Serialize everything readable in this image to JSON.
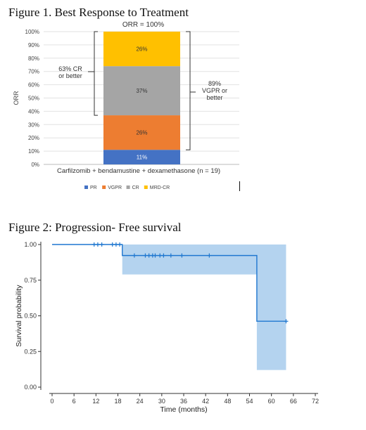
{
  "figure1_title": "Figure 1. Best Response to Treatment",
  "figure2_title": "Figure 2: Progression- Free survival",
  "chart_data": [
    {
      "type": "bar",
      "title": "ORR = 100%",
      "ylabel": "ORR",
      "xlabel": "Carfilzomib + bendamustine + dexamethasone (n = 19)",
      "ylim": [
        0,
        100
      ],
      "ytick_labels": [
        "0%",
        "10%",
        "20%",
        "30%",
        "40%",
        "50%",
        "60%",
        "70%",
        "80%",
        "90%",
        "100%"
      ],
      "stacked": true,
      "categories": [
        "Carfilzomib + bendamustine + dexamethasone (n = 19)"
      ],
      "series": [
        {
          "name": "PR",
          "values": [
            11
          ],
          "label": "11%",
          "color": "#4472c4"
        },
        {
          "name": "VGPR",
          "values": [
            26
          ],
          "label": "26%",
          "color": "#ed7d31"
        },
        {
          "name": "CR",
          "values": [
            37
          ],
          "label": "37%",
          "color": "#a5a5a5"
        },
        {
          "name": "MRD-CR",
          "values": [
            26
          ],
          "label": "26%",
          "color": "#ffc000"
        }
      ],
      "legend_position": "bottom",
      "annotations": [
        {
          "text": [
            "63% CR",
            "or better"
          ],
          "range": [
            37,
            100
          ],
          "side": "left"
        },
        {
          "text": [
            "89%",
            "VGPR or",
            "better"
          ],
          "range": [
            11,
            100
          ],
          "side": "right"
        }
      ],
      "grid": true
    },
    {
      "type": "line",
      "subtype": "kaplan-meier",
      "xlabel": "Time (months)",
      "ylabel": "Survival probability",
      "xlim": [
        0,
        72
      ],
      "ylim": [
        0,
        1
      ],
      "xticks": [
        0,
        6,
        12,
        18,
        24,
        30,
        36,
        42,
        48,
        54,
        60,
        66,
        72
      ],
      "yticks": [
        0,
        0.25,
        0.5,
        0.75,
        1
      ],
      "ytick_labels": [
        "0.00",
        "0.25",
        "0.50",
        "0.75",
        "1.00"
      ],
      "step": {
        "x": [
          0,
          19.2,
          56,
          64
        ],
        "y": [
          1.0,
          0.923,
          0.462,
          0.462
        ]
      },
      "ci": {
        "x": [
          19.2,
          56,
          64
        ],
        "lower": [
          0.79,
          0.12,
          0.12
        ],
        "upper": [
          1.0,
          1.0,
          1.0
        ]
      },
      "censor_x": [
        11.5,
        12.5,
        13.6,
        16.5,
        17.5,
        18.5,
        22.5,
        25.5,
        26.5,
        27.5,
        28.2,
        29.5,
        30.5,
        32.5,
        35.5,
        43,
        64
      ],
      "line_color": "#1f77d0",
      "ci_color": "#b4d3ef",
      "grid": false
    }
  ]
}
